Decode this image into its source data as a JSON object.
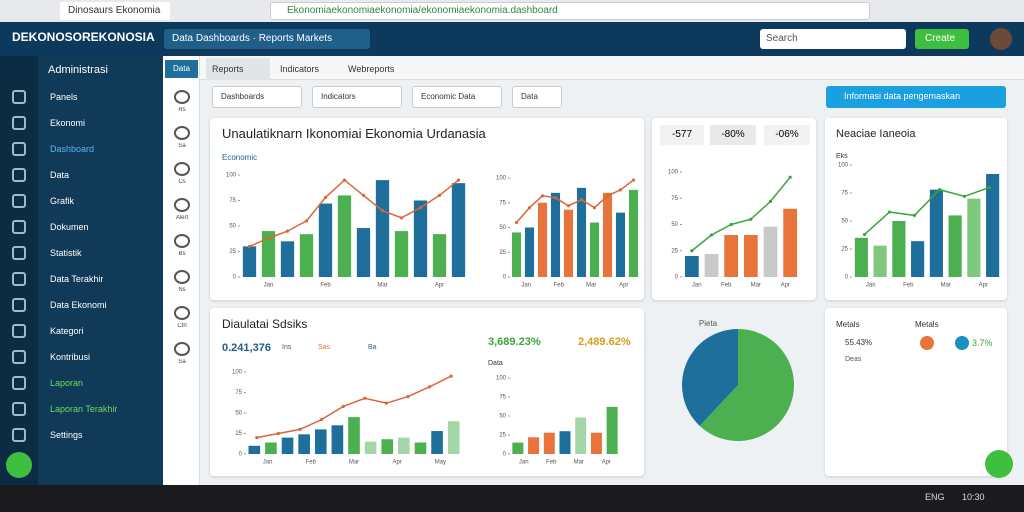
{
  "browser": {
    "tab": "Dinosaurs Ekonomia",
    "address": "Ekonomiaekonomiaekonomia/ekonomiaekonomia.dashboard"
  },
  "header": {
    "logo": "DEKONOSOREKONOSIA",
    "menu": "Data  Dashboards · Reports  Markets",
    "search": "Search",
    "button": "Create"
  },
  "sidebar": {
    "title": "Administrasi",
    "items": [
      {
        "label": "Panels",
        "color": "#ffffff"
      },
      {
        "label": "Ekonomi",
        "color": "#ffffff"
      },
      {
        "label": "Dashboard",
        "color": "#5ab4f0"
      },
      {
        "label": "Data",
        "color": "#ffffff"
      },
      {
        "label": "Grafik",
        "color": "#ffffff"
      },
      {
        "label": "Dokumen",
        "color": "#ffffff"
      },
      {
        "label": "Statistik",
        "color": "#ffffff"
      },
      {
        "label": "Data Terakhir",
        "color": "#ffffff"
      },
      {
        "label": "Data Ekonomi",
        "color": "#ffffff"
      },
      {
        "label": "Kategori",
        "color": "#ffffff"
      },
      {
        "label": "Kontribusi",
        "color": "#ffffff"
      },
      {
        "label": "Laporan",
        "color": "#6ddc5a"
      },
      {
        "label": "Laporan Terakhir",
        "color": "#6ddc5a"
      },
      {
        "label": "Settings",
        "color": "#ffffff"
      }
    ]
  },
  "iconbar": {
    "head": "Data",
    "labels": [
      "Rs",
      "Sa",
      "Cs",
      "Alert",
      "Bs",
      "Ns",
      "Ctrl",
      "Sa"
    ]
  },
  "tabs": [
    "Reports",
    "Indicators",
    "Webreports"
  ],
  "buttons": [
    "Dashboards",
    "Indicators",
    "Economic Data",
    "Data"
  ],
  "banner": "Informasi data pengemaskan",
  "panels": {
    "top_title": "Unaulatiknarn Ikonomiai Ekonomia Urdanasia",
    "top_subtitle": "Economic",
    "stats": [
      "-577",
      "-80%",
      "-06%"
    ],
    "right_title": "Neaciae Ianeoia",
    "right_sub": "Eks",
    "bottom_title": "Diaulatai Sdsiks",
    "bottom_stat": "0.241,376",
    "bottom_legend": [
      "Ins",
      "Sas",
      "Ba"
    ],
    "bottom_pct": [
      "3,689.23%",
      "2,489.62%"
    ],
    "bottom_sub": "Data",
    "legend_title": [
      "Metals",
      "Metals"
    ],
    "legend_items": [
      "55.43%",
      "3.7%"
    ],
    "legend_sub": "Deas"
  },
  "charts": [
    {
      "yticks": [
        0,
        25,
        50,
        75,
        100
      ],
      "ylim": [
        0,
        100
      ],
      "categories": [
        "Jan",
        "Feb",
        "Mar",
        "Apr"
      ],
      "bars": [
        30,
        45,
        35,
        42,
        72,
        80,
        48,
        95,
        45,
        75,
        42,
        92
      ],
      "bar_colors": [
        "#1f6f9c",
        "#4caf50",
        "#1f6f9c",
        "#4caf50",
        "#1f6f9c",
        "#4caf50",
        "#1f6f9c",
        "#1f6f9c",
        "#4caf50",
        "#1f6f9c",
        "#4caf50",
        "#1f6f9c"
      ],
      "line": [
        30,
        38,
        45,
        55,
        78,
        95,
        80,
        65,
        58,
        68,
        80,
        95
      ],
      "line_color": "#d9673a"
    },
    {
      "yticks": [
        0,
        25,
        50,
        75,
        100
      ],
      "ylim": [
        0,
        100
      ],
      "categories": [
        "Jan",
        "Feb",
        "Mar",
        "Apr"
      ],
      "bars": [
        45,
        50,
        75,
        85,
        68,
        90,
        55,
        85,
        65,
        88
      ],
      "bar_colors": [
        "#4caf50",
        "#1f6f9c",
        "#e8743b",
        "#1f6f9c",
        "#e8743b",
        "#1f6f9c",
        "#4caf50",
        "#e8743b",
        "#1f6f9c",
        "#4caf50"
      ],
      "line": [
        55,
        70,
        82,
        80,
        72,
        78,
        70,
        82,
        88,
        98
      ],
      "line_color": "#d9673a"
    },
    {
      "yticks": [
        0,
        25,
        50,
        75,
        100
      ],
      "ylim": [
        0,
        100
      ],
      "categories": [
        "Jan",
        "Feb",
        "Mar",
        "Apr"
      ],
      "bars": [
        20,
        22,
        40,
        40,
        48,
        65
      ],
      "bar_colors": [
        "#1f6f9c",
        "#c9c9c9",
        "#e8743b",
        "#e8743b",
        "#c9c9c9",
        "#e8743b"
      ],
      "line": [
        25,
        40,
        50,
        55,
        72,
        95
      ],
      "line_color": "#3aa53a"
    },
    {
      "yticks": [
        0,
        25,
        50,
        75,
        100
      ],
      "ylim": [
        0,
        100
      ],
      "categories": [
        "Jan",
        "Feb",
        "Mar",
        "Apr"
      ],
      "bars": [
        35,
        28,
        50,
        32,
        78,
        55,
        70,
        92
      ],
      "bar_colors": [
        "#4caf50",
        "#7fc97f",
        "#4caf50",
        "#1f6f9c",
        "#1f6f9c",
        "#4caf50",
        "#7fc97f",
        "#1f6f9c"
      ],
      "line": [
        38,
        58,
        55,
        78,
        72,
        80
      ],
      "line_color": "#3aa53a"
    },
    {
      "yticks": [
        0,
        25,
        50,
        75,
        100
      ],
      "ylim": [
        0,
        100
      ],
      "categories": [
        "Jan",
        "Feb",
        "Mar",
        "Apr",
        "May"
      ],
      "bars": [
        10,
        14,
        20,
        24,
        30,
        35,
        45,
        15,
        18,
        20,
        14,
        28,
        40
      ],
      "bar_colors": [
        "#1f6f9c",
        "#4caf50",
        "#1f6f9c",
        "#1f6f9c",
        "#1f6f9c",
        "#1f6f9c",
        "#4caf50",
        "#a5d6a7",
        "#4caf50",
        "#a5d6a7",
        "#4caf50",
        "#1f6f9c",
        "#a5d6a7"
      ],
      "line": [
        20,
        25,
        30,
        42,
        58,
        68,
        62,
        70,
        82,
        95
      ],
      "line_color": "#d9673a"
    },
    {
      "yticks": [
        0,
        25,
        50,
        75,
        100
      ],
      "ylim": [
        0,
        100
      ],
      "categories": [
        "Jan",
        "Feb",
        "Mar",
        "Apr"
      ],
      "bars": [
        15,
        22,
        28,
        30,
        48,
        28,
        62
      ],
      "bar_colors": [
        "#4caf50",
        "#e8743b",
        "#e8743b",
        "#1f6f9c",
        "#a5d6a7",
        "#e8743b",
        "#4caf50"
      ],
      "line": [],
      "line_color": "#d9673a"
    }
  ],
  "pie": {
    "title": "Pieta",
    "values": [
      62,
      38
    ],
    "colors": [
      "#4caf50",
      "#1f6f9c"
    ]
  },
  "taskbar": {
    "tray": [
      "ENG",
      "10:30"
    ]
  }
}
